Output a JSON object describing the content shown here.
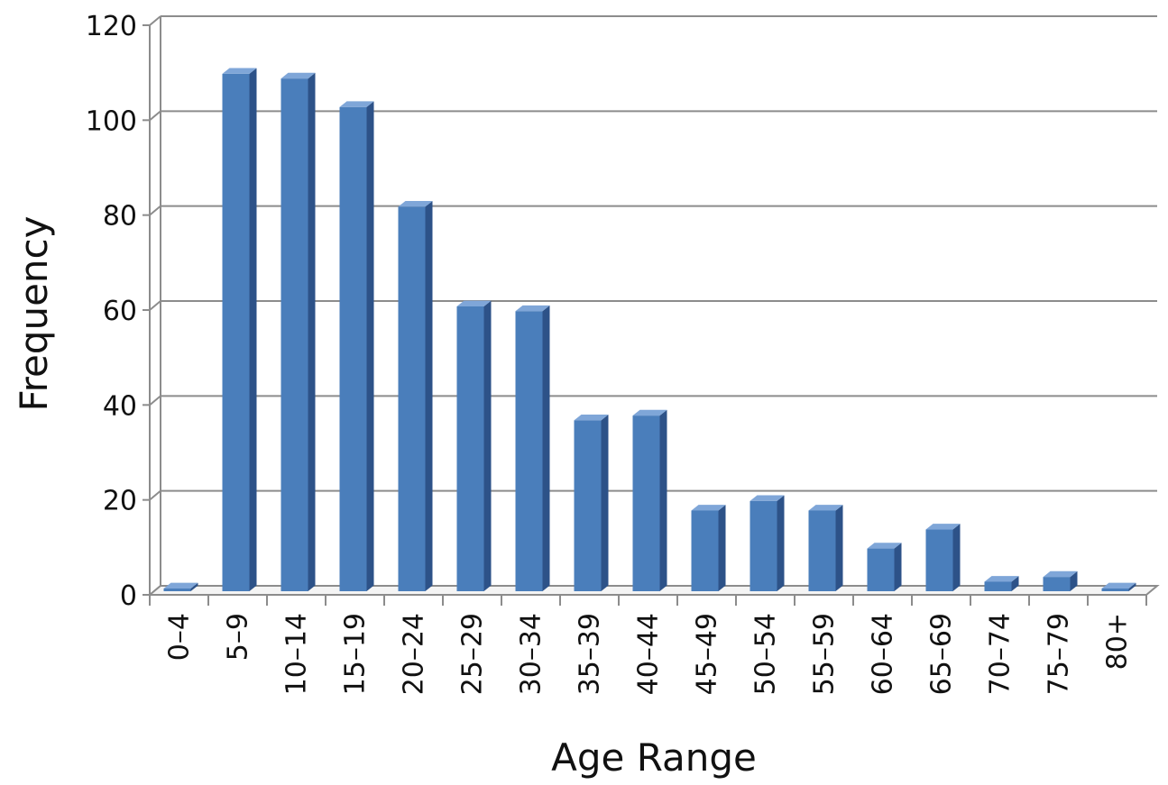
{
  "chart_data": {
    "type": "bar",
    "title": "",
    "xlabel": "Age Range",
    "ylabel": "Frequency",
    "categories": [
      "0–4",
      "5–9",
      "10–14",
      "15–19",
      "20–24",
      "25–29",
      "30–34",
      "35–39",
      "40–44",
      "45–49",
      "50–54",
      "55–59",
      "60–64",
      "65–69",
      "70–74",
      "75–79",
      "80+"
    ],
    "values": [
      0.5,
      109,
      108,
      102,
      81,
      60,
      59,
      36,
      37,
      17,
      19,
      17,
      9,
      13,
      2,
      3,
      0.3
    ],
    "ylim": [
      0,
      120
    ],
    "yticks": [
      "0",
      "20",
      "40",
      "60",
      "80",
      "100",
      "120"
    ],
    "grid": true,
    "legend": "none",
    "colors": {
      "bar_front": "#4a7ebb",
      "bar_side": "#2d5288",
      "bar_top": "#7fa6d8",
      "grid": "#8c8c8c"
    }
  }
}
